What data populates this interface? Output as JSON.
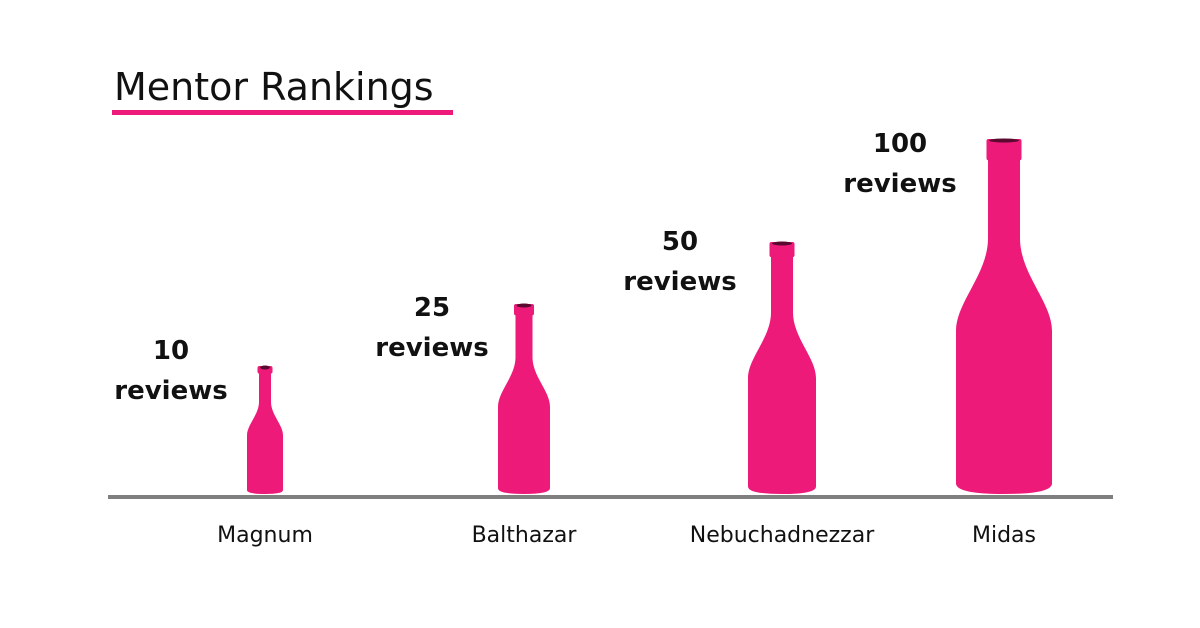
{
  "title": "Mentor Rankings",
  "items": [
    {
      "name": "Magnum",
      "count": "10",
      "unit": "reviews"
    },
    {
      "name": "Balthazar",
      "count": "25",
      "unit": "reviews"
    },
    {
      "name": "Nebuchadnezzar",
      "count": "50",
      "unit": "reviews"
    },
    {
      "name": "Midas",
      "count": "100",
      "unit": "reviews"
    }
  ]
}
